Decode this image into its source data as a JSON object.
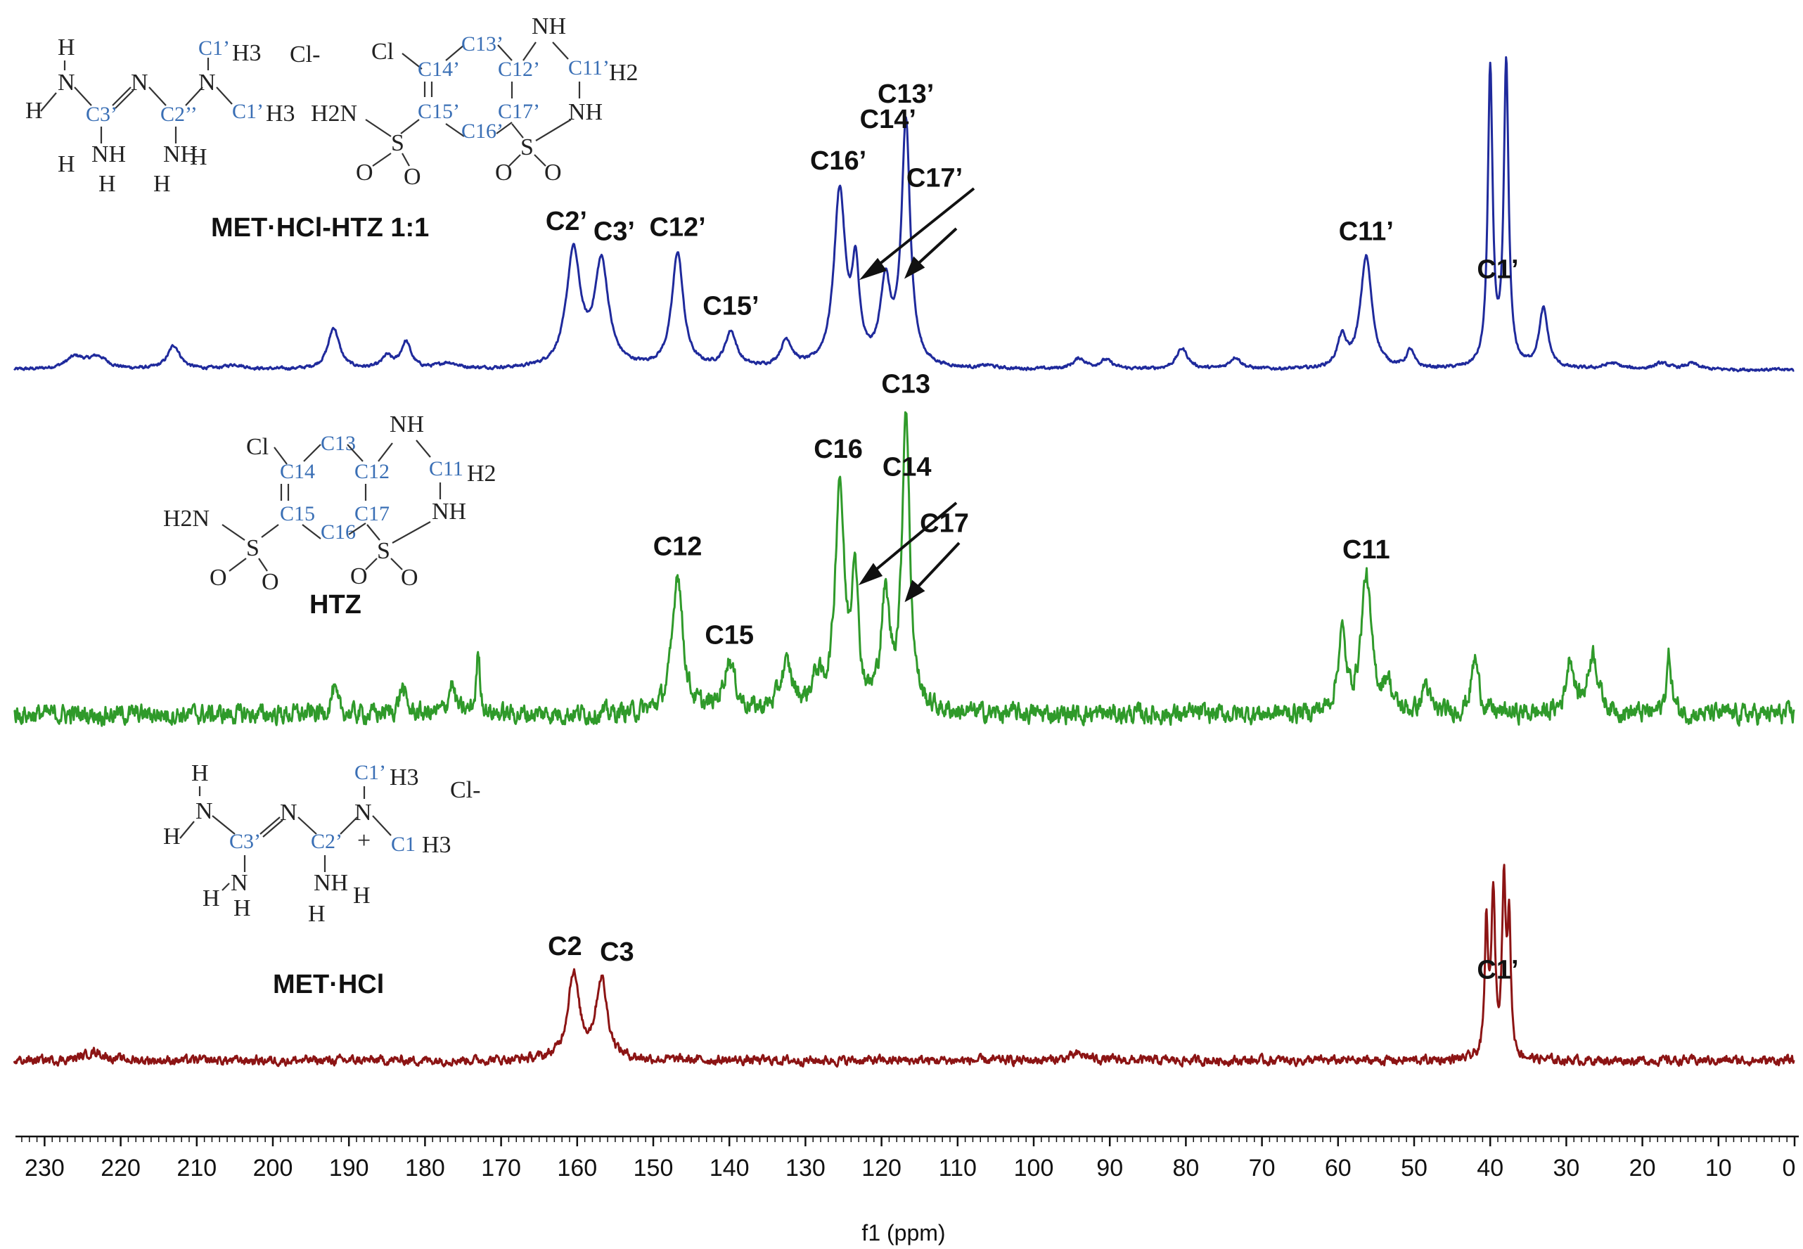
{
  "chart_data": {
    "type": "line",
    "x_unit": "ppm",
    "xlabel": "f1 (ppm)",
    "xlim": [
      235,
      0
    ],
    "x_ticks": [
      "230",
      "220",
      "210",
      "200",
      "190",
      "180",
      "170",
      "160",
      "150",
      "140",
      "130",
      "120",
      "110",
      "100",
      "90",
      "80",
      "70",
      "60",
      "50",
      "40",
      "30",
      "20",
      "10",
      "0"
    ],
    "colors": {
      "met_hcl_htz": "#1f2a9c",
      "htz": "#2f9a2a",
      "met_hcl": "#8c1414"
    },
    "series": [
      {
        "name": "MET·HCl-HTZ 1:1",
        "color": "#1f2a9c",
        "noise": 0.004,
        "peaks": [
          [
            226,
            0.04,
            1.5
          ],
          [
            223,
            0.04,
            1.5
          ],
          [
            213,
            0.08,
            1.0
          ],
          [
            205,
            0.015,
            1.5
          ],
          [
            192,
            0.14,
            0.9
          ],
          [
            185,
            0.04,
            0.8
          ],
          [
            182.5,
            0.09,
            0.8
          ],
          [
            177,
            0.02,
            1.5
          ],
          [
            160.5,
            0.39,
            1.1
          ],
          [
            156.8,
            0.35,
            1.1
          ],
          [
            146.8,
            0.39,
            0.9
          ],
          [
            139.8,
            0.12,
            0.9
          ],
          [
            132.5,
            0.09,
            0.9
          ],
          [
            125.5,
            0.59,
            0.9
          ],
          [
            123.4,
            0.3,
            0.6
          ],
          [
            119.5,
            0.27,
            0.8
          ],
          [
            116.8,
            0.82,
            0.7
          ],
          [
            106,
            0.01,
            1.0
          ],
          [
            94,
            0.035,
            1.0
          ],
          [
            90.5,
            0.03,
            1.0
          ],
          [
            80.5,
            0.07,
            0.9
          ],
          [
            73.5,
            0.04,
            0.9
          ],
          [
            59.5,
            0.1,
            0.7
          ],
          [
            56.3,
            0.38,
            0.9
          ],
          [
            50.5,
            0.06,
            0.6
          ],
          [
            40.0,
            1.0,
            0.38
          ],
          [
            37.9,
            1.02,
            0.38
          ],
          [
            33.0,
            0.2,
            0.7
          ],
          [
            24,
            0.02,
            1.2
          ],
          [
            17.5,
            0.02,
            1.2
          ],
          [
            13.5,
            0.02,
            1.0
          ]
        ]
      },
      {
        "name": "HTZ",
        "color": "#2f9a2a",
        "noise": 0.025,
        "peaks": [
          [
            173,
            0.2,
            0.3
          ],
          [
            176.5,
            0.1,
            0.5
          ],
          [
            183,
            0.09,
            0.5
          ],
          [
            192,
            0.08,
            0.5
          ],
          [
            146.8,
            0.47,
            0.8
          ],
          [
            140,
            0.17,
            0.9
          ],
          [
            132.5,
            0.15,
            1.0
          ],
          [
            128.5,
            0.1,
            0.8
          ],
          [
            125.5,
            0.75,
            0.7
          ],
          [
            123.5,
            0.46,
            0.5
          ],
          [
            119.5,
            0.36,
            0.7
          ],
          [
            116.8,
            0.99,
            0.6
          ],
          [
            59.5,
            0.26,
            0.6
          ],
          [
            56.3,
            0.45,
            0.8
          ],
          [
            53.5,
            0.1,
            0.6
          ],
          [
            48.5,
            0.1,
            0.5
          ],
          [
            42,
            0.18,
            0.6
          ],
          [
            29.5,
            0.18,
            0.6
          ],
          [
            26.5,
            0.2,
            0.8
          ],
          [
            16.5,
            0.19,
            0.4
          ]
        ]
      },
      {
        "name": "MET·HCl",
        "color": "#8c1414",
        "noise": 0.012,
        "peaks": [
          [
            223.5,
            0.03,
            1.5
          ],
          [
            160.5,
            0.29,
            0.9
          ],
          [
            156.8,
            0.27,
            0.9
          ],
          [
            94,
            0.02,
            1.5
          ],
          [
            40.5,
            0.45,
            0.25
          ],
          [
            39.6,
            0.55,
            0.3
          ],
          [
            38.2,
            0.58,
            0.3
          ],
          [
            37.5,
            0.44,
            0.25
          ]
        ]
      }
    ],
    "panel_labels": [
      "MET·HCl-HTZ 1:1",
      "HTZ",
      "MET·HCl"
    ],
    "peak_labels": [
      {
        "text": "C1’",
        "ppm": 39.0,
        "series": 0
      },
      {
        "text": "C13’",
        "ppm": 116.8,
        "series": 0
      },
      {
        "text": "C16’",
        "ppm": 125.5,
        "series": 0
      },
      {
        "text": "C14’",
        "ppm": 123.4,
        "series": 0
      },
      {
        "text": "C17’",
        "ppm": 119.5,
        "series": 0
      },
      {
        "text": "C12’",
        "ppm": 146.8,
        "series": 0
      },
      {
        "text": "C2’",
        "ppm": 160.5,
        "series": 0
      },
      {
        "text": "C3’",
        "ppm": 156.8,
        "series": 0
      },
      {
        "text": "C15’",
        "ppm": 139.8,
        "series": 0
      },
      {
        "text": "C11’",
        "ppm": 56.3,
        "series": 0
      },
      {
        "text": "C13",
        "ppm": 116.8,
        "series": 1
      },
      {
        "text": "C16",
        "ppm": 125.5,
        "series": 1
      },
      {
        "text": "C14",
        "ppm": 123.5,
        "series": 1
      },
      {
        "text": "C17",
        "ppm": 119.5,
        "series": 1
      },
      {
        "text": "C12",
        "ppm": 146.8,
        "series": 1
      },
      {
        "text": "C15",
        "ppm": 140.0,
        "series": 1
      },
      {
        "text": "C11",
        "ppm": 56.3,
        "series": 1
      },
      {
        "text": "C1’",
        "ppm": 39.0,
        "series": 2
      },
      {
        "text": "C2",
        "ppm": 160.5,
        "series": 2
      },
      {
        "text": "C3",
        "ppm": 156.8,
        "series": 2
      }
    ],
    "structure_text": {
      "cl_anion": "Cl-",
      "cl": "Cl",
      "h": "H",
      "n": "N",
      "nh": "NH",
      "h2n": "H2N",
      "s": "S",
      "o": "O",
      "h2": "H2",
      "h3": "H3",
      "plus": "+",
      "met_top": {
        "c1a": "C1’",
        "c1b": "C1’",
        "c2": "C2’’",
        "c3": "C3’"
      },
      "htz_top": {
        "c11": "C11’",
        "c12": "C12’",
        "c13": "C13’",
        "c14": "C14’",
        "c15": "C15’",
        "c16": "C16’",
        "c17": "C17’"
      },
      "htz_mid": {
        "c11": "C11",
        "c12": "C12",
        "c13": "C13",
        "c14": "C14",
        "c15": "C15",
        "c16": "C16",
        "c17": "C17"
      },
      "met_bottom": {
        "c1a": "C1’",
        "c1b": "C1",
        "c2": "C2’",
        "c3": "C3’"
      }
    }
  }
}
